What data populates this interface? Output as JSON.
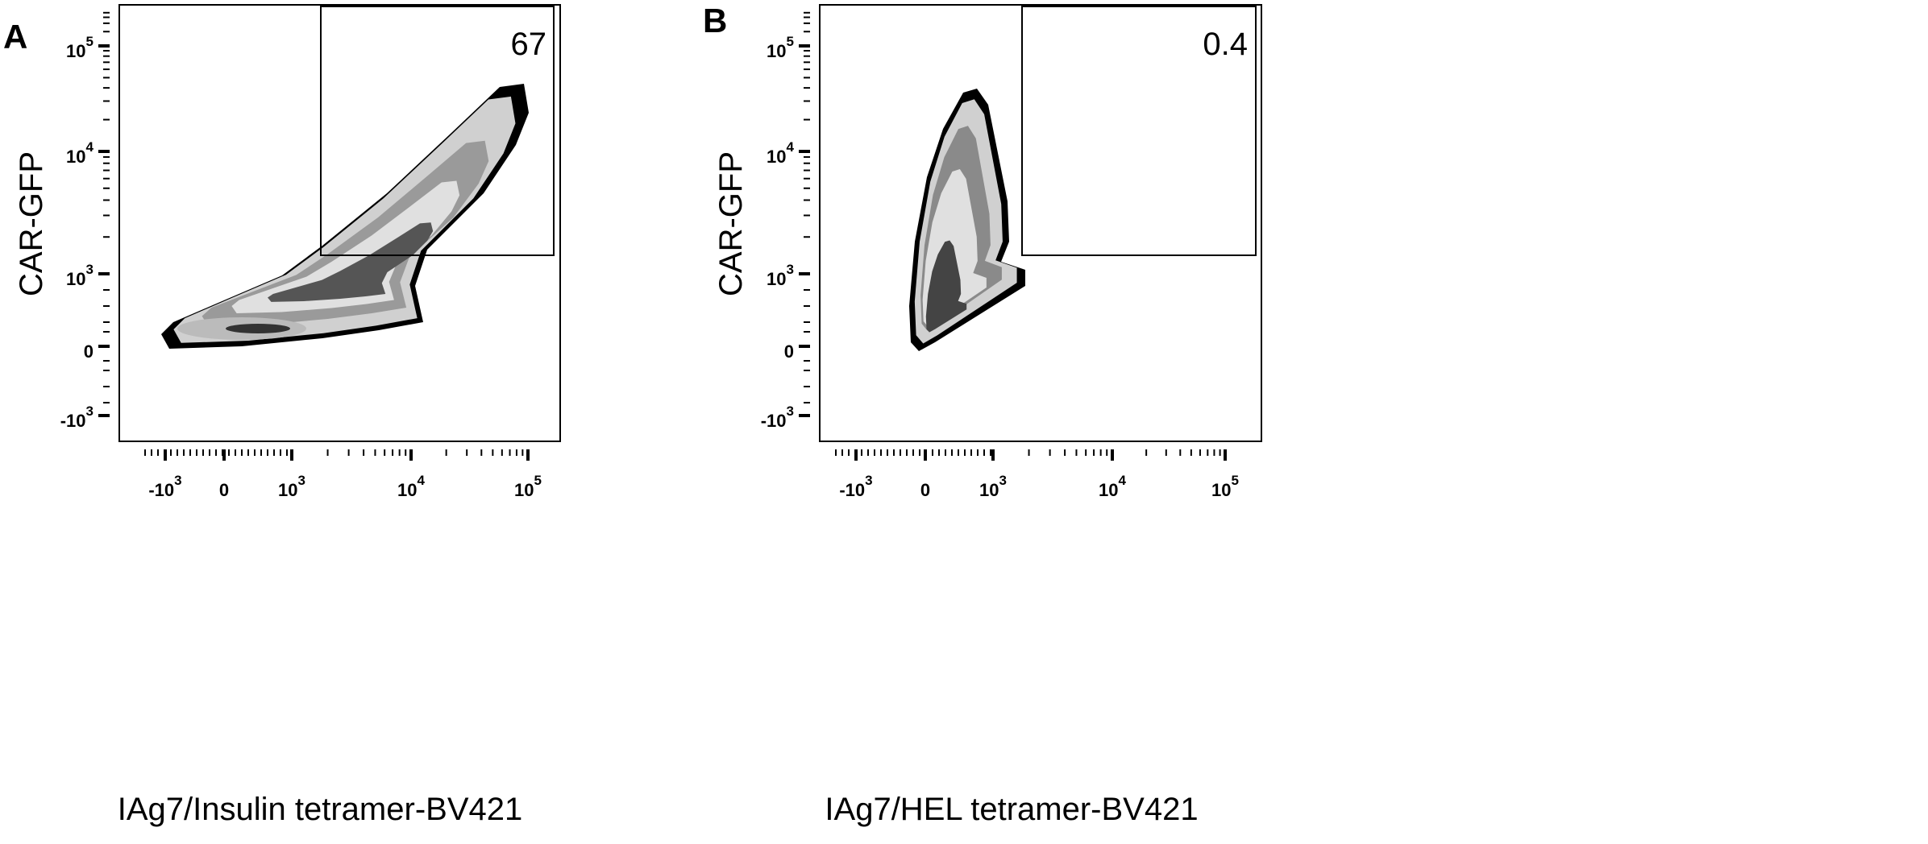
{
  "chart_data": [
    {
      "type": "contour",
      "panel_label": "A",
      "xlabel": "IAg7/Insulin tetramer-BV421",
      "ylabel": "CAR-GFP",
      "x_ticks": [
        {
          "base": "-10",
          "exp": "3"
        },
        {
          "base": "0",
          "exp": ""
        },
        {
          "base": "10",
          "exp": "3"
        },
        {
          "base": "10",
          "exp": "4"
        },
        {
          "base": "10",
          "exp": "5"
        }
      ],
      "y_ticks": [
        {
          "base": "10",
          "exp": "5"
        },
        {
          "base": "10",
          "exp": "4"
        },
        {
          "base": "10",
          "exp": "3"
        },
        {
          "base": "0",
          "exp": ""
        },
        {
          "base": "-10",
          "exp": "3"
        }
      ],
      "scale": "biexponential",
      "gate": {
        "x_min": 1800,
        "x_max": 200000,
        "y_min": 1400,
        "y_max": 250000,
        "value": "67"
      }
    },
    {
      "type": "contour",
      "panel_label": "B",
      "xlabel": "IAg7/HEL tetramer-BV421",
      "ylabel": "CAR-GFP",
      "x_ticks": [
        {
          "base": "-10",
          "exp": "3"
        },
        {
          "base": "0",
          "exp": ""
        },
        {
          "base": "10",
          "exp": "3"
        },
        {
          "base": "10",
          "exp": "4"
        },
        {
          "base": "10",
          "exp": "5"
        }
      ],
      "y_ticks": [
        {
          "base": "10",
          "exp": "5"
        },
        {
          "base": "10",
          "exp": "4"
        },
        {
          "base": "10",
          "exp": "3"
        },
        {
          "base": "0",
          "exp": ""
        },
        {
          "base": "-10",
          "exp": "3"
        }
      ],
      "scale": "biexponential",
      "gate": {
        "x_min": 1800,
        "x_max": 200000,
        "y_min": 1400,
        "y_max": 250000,
        "value": "0.4"
      }
    }
  ]
}
